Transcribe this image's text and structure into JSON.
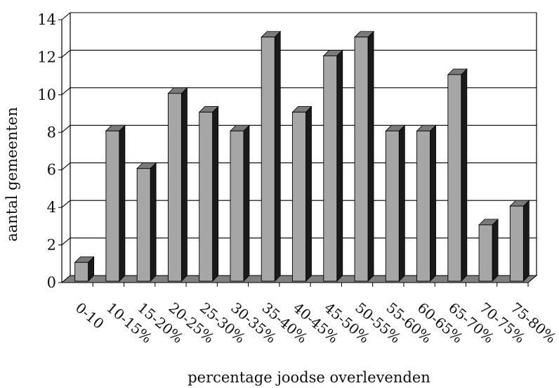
{
  "chart_data": {
    "type": "bar",
    "title": "",
    "xlabel": "percentage joodse overlevenden",
    "ylabel": "aantal gemeenten",
    "categories": [
      "0-10",
      "10-15%",
      "15-20%",
      "20-25%",
      "25-30%",
      "30-35%",
      "35-40%",
      "40-45%",
      "45-50%",
      "50-55%",
      "55-60%",
      "60-65%",
      "65-70%",
      "70-75%",
      "75-80%"
    ],
    "values": [
      1,
      8,
      6,
      10,
      9,
      8,
      13,
      9,
      12,
      13,
      8,
      8,
      11,
      3,
      4
    ],
    "ylim": [
      0,
      14
    ],
    "yticks": [
      0,
      2,
      4,
      6,
      8,
      10,
      12,
      14
    ],
    "grid": true,
    "colors": {
      "bar_front": "#a6a6a6",
      "bar_side": "#1a1a1a",
      "bar_top": "#7a7a7a",
      "floor": "#808080",
      "gridline": "#000000"
    }
  }
}
